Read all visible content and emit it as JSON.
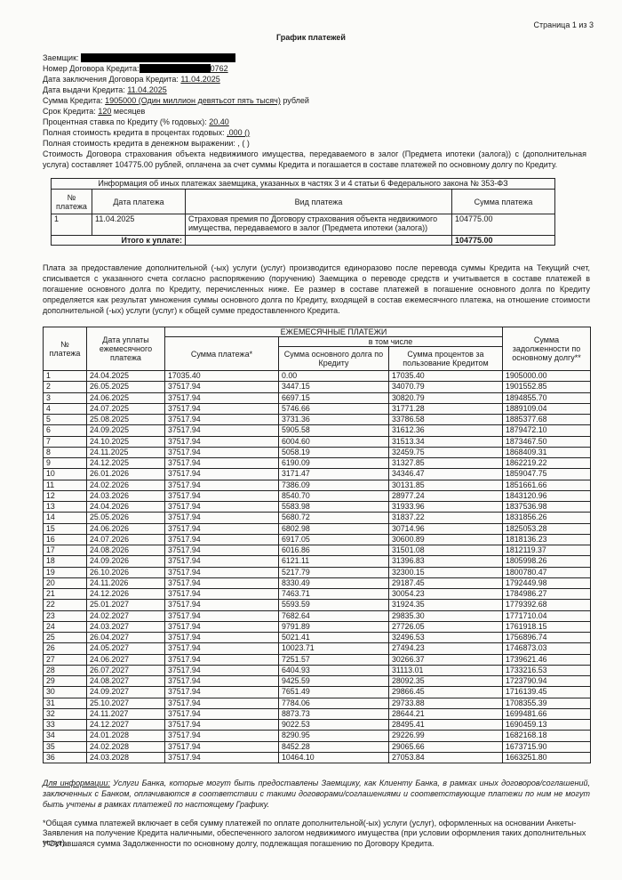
{
  "header": {
    "page_label": "Страница 1 из 3",
    "title": "График платежей"
  },
  "fields": {
    "borrower_label": "Заемщик:",
    "contract_number_label": "Номер Договора Кредита:",
    "contract_number_tail": "0762",
    "contract_date_label": "Дата заключения Договора Кредита:",
    "contract_date": "11.04.2025",
    "issue_date_label": "Дата выдачи Кредита:",
    "issue_date": "11.04.2025",
    "amount_label": "Сумма Кредита:",
    "amount": "1905000 (Один миллион девятьсот пять тысяч)",
    "amount_suffix": "рублей",
    "term_label": "Срок Кредита:",
    "term": "120",
    "term_suffix": "месяцев",
    "rate_label": "Процентная ставка по Кредиту (% годовых):",
    "rate": "20.40",
    "full_cost_pct_label": "Полная стоимость кредита в процентах годовых:",
    "full_cost_pct": ",000 ()",
    "full_cost_money": "Полная стоимость кредита в денежном выражении: , ( )",
    "insurance_note": "Стоимость Договора страхования объекта недвижимого имущества, передаваемого в залог (Предмета ипотеки (залога)) с (дополнительная услуга) составляет 104775.00 рублей, оплачена за счет суммы Кредита и погашается в составе платежей по основному долгу по Кредиту."
  },
  "other_payments": {
    "title": "Информация об иных платежах заемщика, указанных в частях 3 и 4 статьи 6 Федерального закона № 353-ФЗ",
    "columns": [
      "№ платежа",
      "Дата платежа",
      "Вид платежа",
      "Сумма платежа"
    ],
    "rows": [
      [
        "1",
        "11.04.2025",
        "Страховая премия по Договору страхования объекта недвижимого имущества, передаваемого в залог (Предмета ипотеки (залога))",
        "104775.00"
      ]
    ],
    "total_label": "Итого к уплате:",
    "total": "104775.00"
  },
  "paragraph": "Плата за предоставление дополнительной (-ых) услуги (услуг) производится единоразово после перевода суммы Кредита на Текущий счет, списывается с указанного счета согласно распоряжению (поручению) Заемщика о переводе средств и учитывается в составе платежей в погашение основного долга по Кредиту, перечисленных ниже. Ее размер в составе платежей в погашение основного долга по Кредиту определяется как результат умножения суммы основного долга по Кредиту, входящей в состав ежемесячного платежа, на отношение стоимости дополнительной (-ых) услуги (услуг) к общей сумме предоставленного Кредита.",
  "schedule": {
    "columns": {
      "number": "№ платежа",
      "date": "Дата уплаты ежемесячного платежа",
      "monthly": "ЕЖЕМЕСЯЧНЫЕ ПЛАТЕЖИ",
      "including": "в том числе",
      "payment": "Сумма платежа*",
      "principal": "Сумма основного долга по Кредиту",
      "interest": "Сумма процентов за пользование Кредитом",
      "remaining": "Сумма задолженности по основному долгу**"
    },
    "rows": [
      [
        "1",
        "24.04.2025",
        "17035.40",
        "0.00",
        "17035.40",
        "1905000.00"
      ],
      [
        "2",
        "26.05.2025",
        "37517.94",
        "3447.15",
        "34070.79",
        "1901552.85"
      ],
      [
        "3",
        "24.06.2025",
        "37517.94",
        "6697.15",
        "30820.79",
        "1894855.70"
      ],
      [
        "4",
        "24.07.2025",
        "37517.94",
        "5746.66",
        "31771.28",
        "1889109.04"
      ],
      [
        "5",
        "25.08.2025",
        "37517.94",
        "3731.36",
        "33786.58",
        "1885377.68"
      ],
      [
        "6",
        "24.09.2025",
        "37517.94",
        "5905.58",
        "31612.36",
        "1879472.10"
      ],
      [
        "7",
        "24.10.2025",
        "37517.94",
        "6004.60",
        "31513.34",
        "1873467.50"
      ],
      [
        "8",
        "24.11.2025",
        "37517.94",
        "5058.19",
        "32459.75",
        "1868409.31"
      ],
      [
        "9",
        "24.12.2025",
        "37517.94",
        "6190.09",
        "31327.85",
        "1862219.22"
      ],
      [
        "10",
        "26.01.2026",
        "37517.94",
        "3171.47",
        "34346.47",
        "1859047.75"
      ],
      [
        "11",
        "24.02.2026",
        "37517.94",
        "7386.09",
        "30131.85",
        "1851661.66"
      ],
      [
        "12",
        "24.03.2026",
        "37517.94",
        "8540.70",
        "28977.24",
        "1843120.96"
      ],
      [
        "13",
        "24.04.2026",
        "37517.94",
        "5583.98",
        "31933.96",
        "1837536.98"
      ],
      [
        "14",
        "25.05.2026",
        "37517.94",
        "5680.72",
        "31837.22",
        "1831856.26"
      ],
      [
        "15",
        "24.06.2026",
        "37517.94",
        "6802.98",
        "30714.96",
        "1825053.28"
      ],
      [
        "16",
        "24.07.2026",
        "37517.94",
        "6917.05",
        "30600.89",
        "1818136.23"
      ],
      [
        "17",
        "24.08.2026",
        "37517.94",
        "6016.86",
        "31501.08",
        "1812119.37"
      ],
      [
        "18",
        "24.09.2026",
        "37517.94",
        "6121.11",
        "31396.83",
        "1805998.26"
      ],
      [
        "19",
        "26.10.2026",
        "37517.94",
        "5217.79",
        "32300.15",
        "1800780.47"
      ],
      [
        "20",
        "24.11.2026",
        "37517.94",
        "8330.49",
        "29187.45",
        "1792449.98"
      ],
      [
        "21",
        "24.12.2026",
        "37517.94",
        "7463.71",
        "30054.23",
        "1784986.27"
      ],
      [
        "22",
        "25.01.2027",
        "37517.94",
        "5593.59",
        "31924.35",
        "1779392.68"
      ],
      [
        "23",
        "24.02.2027",
        "37517.94",
        "7682.64",
        "29835.30",
        "1771710.04"
      ],
      [
        "24",
        "24.03.2027",
        "37517.94",
        "9791.89",
        "27726.05",
        "1761918.15"
      ],
      [
        "25",
        "26.04.2027",
        "37517.94",
        "5021.41",
        "32496.53",
        "1756896.74"
      ],
      [
        "26",
        "24.05.2027",
        "37517.94",
        "10023.71",
        "27494.23",
        "1746873.03"
      ],
      [
        "27",
        "24.06.2027",
        "37517.94",
        "7251.57",
        "30266.37",
        "1739621.46"
      ],
      [
        "28",
        "26.07.2027",
        "37517.94",
        "6404.93",
        "31113.01",
        "1733216.53"
      ],
      [
        "29",
        "24.08.2027",
        "37517.94",
        "9425.59",
        "28092.35",
        "1723790.94"
      ],
      [
        "30",
        "24.09.2027",
        "37517.94",
        "7651.49",
        "29866.45",
        "1716139.45"
      ],
      [
        "31",
        "25.10.2027",
        "37517.94",
        "7784.06",
        "29733.88",
        "1708355.39"
      ],
      [
        "32",
        "24.11.2027",
        "37517.94",
        "8873.73",
        "28644.21",
        "1699481.66"
      ],
      [
        "33",
        "24.12.2027",
        "37517.94",
        "9022.53",
        "28495.41",
        "1690459.13"
      ],
      [
        "34",
        "24.01.2028",
        "37517.94",
        "8290.95",
        "29226.99",
        "1682168.18"
      ],
      [
        "35",
        "24.02.2028",
        "37517.94",
        "8452.28",
        "29065.66",
        "1673715.90"
      ],
      [
        "36",
        "24.03.2028",
        "37517.94",
        "10464.10",
        "27053.84",
        "1663251.80"
      ]
    ]
  },
  "footer": {
    "info_label": "Для информации:",
    "info_text": "Услуги Банка, которые могут быть предоставлены Заемщику, как Клиенту Банка, в рамках иных договоров/соглашений, заключенных с Банком, оплачиваются в соответствии с такими договорами/соглашениями и соответствующие платежи по ним не могут быть учтены в рамках платежей по настоящему Графику.",
    "note1": "*Общая сумма платежей включает в себя сумму платежей по оплате дополнительной(-ых) услуги (услуг), оформленных на основании Анкеты-Заявления на получение Кредита наличными, обеспеченного залогом недвижимого имущества (при условии оформления таких дополнительных услуг).",
    "note2": "**Оставшаяся сумма Задолженности по основному долгу, подлежащая погашению по Договору Кредита."
  }
}
